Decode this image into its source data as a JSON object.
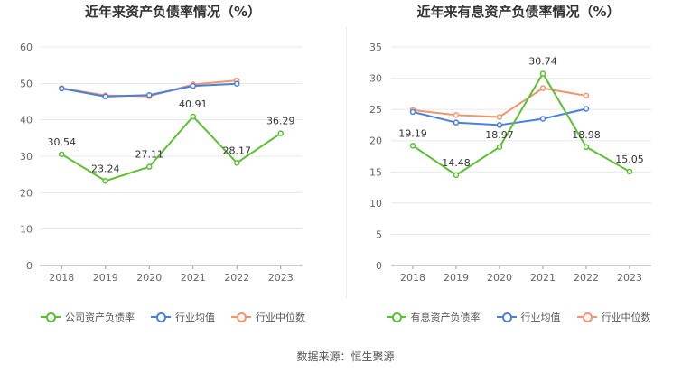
{
  "source": "数据来源：恒生聚源",
  "chart_data": [
    {
      "type": "line",
      "title": "近年来资产负债率情况（%）",
      "categories": [
        "2018",
        "2019",
        "2020",
        "2021",
        "2022",
        "2023"
      ],
      "ylim": [
        0,
        60
      ],
      "yticks": [
        0,
        10,
        20,
        30,
        40,
        50,
        60
      ],
      "grid": true,
      "legend_placement": "bottom-center",
      "series": [
        {
          "name": "公司资产负债率",
          "color": "#5ac032",
          "values": [
            30.54,
            23.24,
            27.11,
            40.91,
            28.17,
            36.29
          ],
          "show_labels": true
        },
        {
          "name": "行业均值",
          "color": "#4a7fdc",
          "values": [
            48.6,
            46.4,
            46.8,
            49.3,
            49.9,
            null
          ],
          "show_labels": false
        },
        {
          "name": "行业中位数",
          "color": "#f0956e",
          "values": [
            48.7,
            46.7,
            46.5,
            49.7,
            50.8,
            null
          ],
          "show_labels": false
        }
      ]
    },
    {
      "type": "line",
      "title": "近年来有息资产负债率情况（%）",
      "categories": [
        "2018",
        "2019",
        "2020",
        "2021",
        "2022",
        "2023"
      ],
      "ylim": [
        0,
        35
      ],
      "yticks": [
        0,
        5,
        10,
        15,
        20,
        25,
        30,
        35
      ],
      "grid": true,
      "legend_placement": "bottom-center",
      "series": [
        {
          "name": "有息资产负债率",
          "color": "#5ac032",
          "values": [
            19.19,
            14.48,
            18.97,
            30.74,
            18.98,
            15.05
          ],
          "show_labels": true
        },
        {
          "name": "行业均值",
          "color": "#4a7fdc",
          "values": [
            24.6,
            22.9,
            22.5,
            23.5,
            25.1,
            null
          ],
          "show_labels": false
        },
        {
          "name": "行业中位数",
          "color": "#f0956e",
          "values": [
            24.9,
            24.1,
            23.8,
            28.4,
            27.2,
            null
          ],
          "show_labels": false
        }
      ]
    }
  ]
}
